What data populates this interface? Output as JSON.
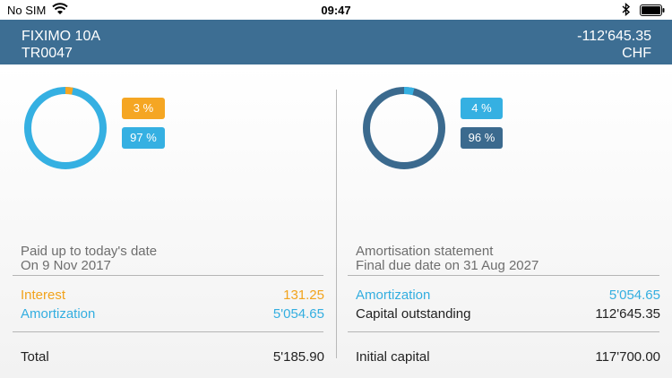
{
  "statusbar": {
    "carrier": "No SIM",
    "time": "09:47"
  },
  "header": {
    "title": "FIXIMO 10A",
    "subtitle": "TR0047",
    "amount": "-112'645.35",
    "currency": "CHF"
  },
  "left": {
    "donut": {
      "accent_fraction": 0.03,
      "accent_color": "#f5a623",
      "base_color": "#35b0e2"
    },
    "badge_accent": "3 %",
    "badge_main": "97 %",
    "heading": "Paid up to today's date",
    "subheading": "On 9 Nov 2017",
    "interest_label": "Interest",
    "interest_value": "131.25",
    "amortization_label": "Amortization",
    "amortization_value": "5'054.65",
    "total_label": "Total",
    "total_value": "5'185.90"
  },
  "right": {
    "donut": {
      "accent_fraction": 0.04,
      "accent_color": "#35b0e2",
      "base_color": "#3b6a8e"
    },
    "badge_accent": "4 %",
    "badge_main": "96 %",
    "heading": "Amortisation statement",
    "subheading": "Final due date on 31 Aug 2027",
    "amortization_label": "Amortization",
    "amortization_value": "5'054.65",
    "outstanding_label": "Capital outstanding",
    "outstanding_value": "112'645.35",
    "initial_label": "Initial capital",
    "initial_value": "117'700.00"
  },
  "colors": {
    "header_bg": "#3d6e93",
    "orange": "#f2a31c",
    "blue": "#33aee0",
    "navy": "#3b6a8e"
  },
  "icons": [
    "wifi-icon",
    "bluetooth-icon",
    "battery-icon"
  ]
}
